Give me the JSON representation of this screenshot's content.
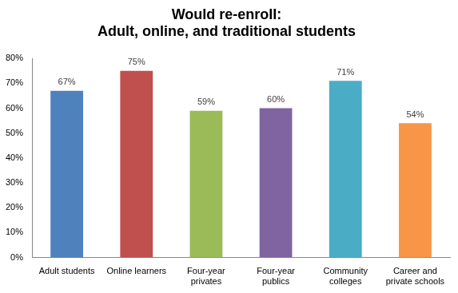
{
  "chart_data": {
    "type": "bar",
    "title": [
      "Would re-enroll:",
      "Adult, online, and traditional students"
    ],
    "categories": [
      "Adult students",
      "Online learners",
      "Four-year privates",
      "Four-year publics",
      "Community colleges",
      "Career and private schools"
    ],
    "values": [
      67,
      75,
      59,
      60,
      71,
      54
    ],
    "value_labels": [
      "67%",
      "75%",
      "59%",
      "60%",
      "71%",
      "54%"
    ],
    "colors": [
      "#4f81bd",
      "#c0504d",
      "#9bbb59",
      "#8064a2",
      "#4bacc6",
      "#f79646"
    ],
    "ylim": [
      0,
      80
    ],
    "yticks": [
      {
        "value": 0,
        "label": "0%"
      },
      {
        "value": 10,
        "label": "10%"
      },
      {
        "value": 20,
        "label": "20%"
      },
      {
        "value": 30,
        "label": "30%"
      },
      {
        "value": 40,
        "label": "40%"
      },
      {
        "value": 50,
        "label": "50%"
      },
      {
        "value": 60,
        "label": "60%"
      },
      {
        "value": 70,
        "label": "70%"
      },
      {
        "value": 80,
        "label": "80%"
      }
    ],
    "grid": false,
    "data_labels": true
  }
}
